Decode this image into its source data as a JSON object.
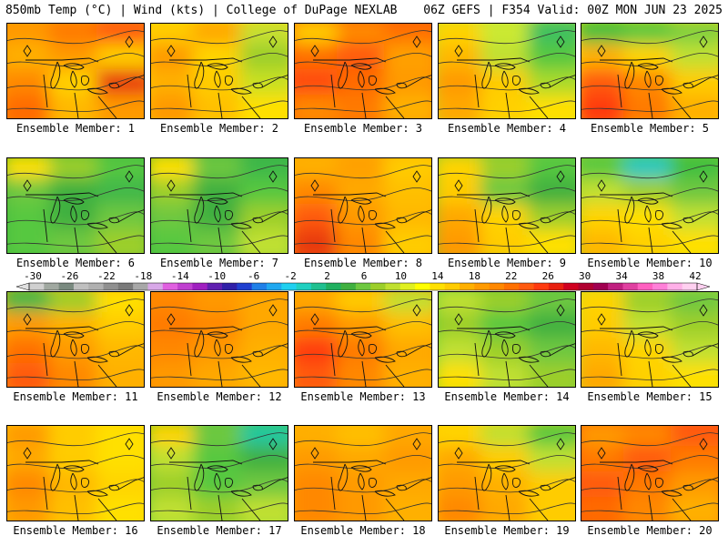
{
  "header": {
    "left": "850mb Temp (°C) | Wind (kts) | College of DuPage NEXLAB",
    "right": "06Z GEFS | F354 Valid: 00Z MON JUN 23 2025"
  },
  "panels": [
    {
      "label": "Ensemble Member: 1",
      "colors": [
        "#ff9900",
        "#ff7a00",
        "#ff5a10",
        "#ffb000",
        "#ff9a00",
        "#ffcc00",
        "#ff8800",
        "#ffd000",
        "#e83a10",
        "#ff6a00",
        "#ffb800",
        "#ff9a00"
      ]
    },
    {
      "label": "Ensemble Member: 2",
      "colors": [
        "#ffcc00",
        "#ffa800",
        "#c7e030",
        "#ff9900",
        "#ffd400",
        "#9ccf2a",
        "#ffb000",
        "#ffcc00",
        "#c8e020",
        "#ff9900",
        "#ffc000",
        "#ffe000"
      ]
    },
    {
      "label": "Ensemble Member: 3",
      "colors": [
        "#ffcc00",
        "#ff8a00",
        "#ff7000",
        "#ff7000",
        "#ff5a10",
        "#ffa000",
        "#ff4a10",
        "#ff6a00",
        "#ff9a00",
        "#ff8800",
        "#ff7a00",
        "#ffb000"
      ]
    },
    {
      "label": "Ensemble Member: 4",
      "colors": [
        "#ffd400",
        "#ccea30",
        "#3cc060",
        "#ffb800",
        "#c0e030",
        "#56c840",
        "#ff9a00",
        "#ffcc00",
        "#a8da2a",
        "#ffa800",
        "#ffd000",
        "#ffe000"
      ]
    },
    {
      "label": "Ensemble Member: 5",
      "colors": [
        "#3cbf40",
        "#56c840",
        "#80d040",
        "#ffb000",
        "#ffd400",
        "#c0e030",
        "#ff5a10",
        "#ff8800",
        "#ffcc00",
        "#ff3a10",
        "#ff7a00",
        "#ffb000"
      ]
    },
    {
      "label": "Ensemble Member: 6",
      "colors": [
        "#ffe000",
        "#9ccf2a",
        "#56c840",
        "#6ec840",
        "#3cb040",
        "#40b848",
        "#56c840",
        "#40b040",
        "#6ec840",
        "#56c840",
        "#6ec840",
        "#9ccf2a"
      ]
    },
    {
      "label": "Ensemble Member: 7",
      "colors": [
        "#ffe000",
        "#6ec840",
        "#3cb848",
        "#9ccf2a",
        "#40b040",
        "#56c840",
        "#6ec840",
        "#40b040",
        "#9ccf2a",
        "#56c840",
        "#6ec840",
        "#c0e030"
      ]
    },
    {
      "label": "Ensemble Member: 8",
      "colors": [
        "#ffb000",
        "#ffa000",
        "#ffcc00",
        "#ff8800",
        "#ffa800",
        "#ffc000",
        "#ff5a10",
        "#ff9a00",
        "#ffb800",
        "#e83a10",
        "#ff8800",
        "#ffcc00"
      ]
    },
    {
      "label": "Ensemble Member: 9",
      "colors": [
        "#ffd400",
        "#9ccf2a",
        "#56c840",
        "#ffcc00",
        "#6ec840",
        "#40b040",
        "#ffa800",
        "#ffd400",
        "#9ccf2a",
        "#ff9a00",
        "#ffcc00",
        "#ffe000"
      ]
    },
    {
      "label": "Ensemble Member: 10",
      "colors": [
        "#56c840",
        "#20c8c0",
        "#3cbf40",
        "#c0e030",
        "#9ccf2a",
        "#6ec840",
        "#ffd400",
        "#ffe000",
        "#c0e030",
        "#ffb800",
        "#ffd000",
        "#ffe000"
      ]
    },
    {
      "label": "Ensemble Member: 11",
      "colors": [
        "#3cb848",
        "#9ccf2a",
        "#ffe000",
        "#ff9a00",
        "#ffb000",
        "#ffcc00",
        "#ff7000",
        "#ff9a00",
        "#ffb800",
        "#ff5a10",
        "#ff8800",
        "#ffb000"
      ]
    },
    {
      "label": "Ensemble Member: 12",
      "colors": [
        "#ff8800",
        "#ff9a00",
        "#ffa800",
        "#ff7a00",
        "#ff8800",
        "#ffa800",
        "#ff8800",
        "#ff9900",
        "#ffb000",
        "#ff9a00",
        "#ffa800",
        "#ffb800"
      ]
    },
    {
      "label": "Ensemble Member: 13",
      "colors": [
        "#ffa800",
        "#ffcc00",
        "#c0e030",
        "#ff7a00",
        "#ff9a00",
        "#ffc000",
        "#ff3a10",
        "#ff7a00",
        "#ffa800",
        "#ff5a10",
        "#ff8800",
        "#ffb000"
      ]
    },
    {
      "label": "Ensemble Member: 14",
      "colors": [
        "#c0e030",
        "#9ccf2a",
        "#6ec840",
        "#9ccf2a",
        "#56c840",
        "#40b040",
        "#c0e030",
        "#9ccf2a",
        "#6ec840",
        "#ffe000",
        "#c0e030",
        "#9ccf2a"
      ]
    },
    {
      "label": "Ensemble Member: 15",
      "colors": [
        "#ffd400",
        "#9ccf2a",
        "#6ec840",
        "#ffcc00",
        "#c0e030",
        "#9ccf2a",
        "#ffb800",
        "#ffd400",
        "#c0e030",
        "#ffa800",
        "#ffd000",
        "#ffe000"
      ]
    },
    {
      "label": "Ensemble Member: 16",
      "colors": [
        "#ff9a00",
        "#ffcc00",
        "#ffe000",
        "#ffa800",
        "#ffcc00",
        "#ffe000",
        "#ff8800",
        "#ffb800",
        "#ffd400",
        "#ff9a00",
        "#ffc000",
        "#ffe000"
      ]
    },
    {
      "label": "Ensemble Member: 17",
      "colors": [
        "#ffd400",
        "#6ec840",
        "#20c8a0",
        "#c0e030",
        "#56c840",
        "#40b040",
        "#9ccf2a",
        "#56c840",
        "#6ec840",
        "#c0e030",
        "#9ccf2a",
        "#c0e030"
      ]
    },
    {
      "label": "Ensemble Member: 18",
      "colors": [
        "#ffb000",
        "#ffc000",
        "#ffa800",
        "#ff9a00",
        "#ffa800",
        "#ff9a00",
        "#ff8800",
        "#ff9a00",
        "#ffa800",
        "#ff8800",
        "#ff9900",
        "#ffb000"
      ]
    },
    {
      "label": "Ensemble Member: 19",
      "colors": [
        "#ffd400",
        "#c0e030",
        "#56c840",
        "#ffa800",
        "#ffcc00",
        "#c0e030",
        "#ff9a00",
        "#ffb000",
        "#ffcc00",
        "#ff8800",
        "#ffa800",
        "#ffcc00"
      ]
    },
    {
      "label": "Ensemble Member: 20",
      "colors": [
        "#ff9a00",
        "#ff8800",
        "#ff5a10",
        "#ff7a00",
        "#ff5a10",
        "#ff7a00",
        "#ff5a10",
        "#ff7a00",
        "#ff9a00",
        "#ff6a00",
        "#ff8800",
        "#ffb000"
      ]
    }
  ],
  "colorbar": {
    "labels": [
      "-30",
      "-26",
      "-22",
      "-18",
      "-14",
      "-10",
      "-6",
      "-2",
      "2",
      "6",
      "10",
      "14",
      "18",
      "22",
      "26",
      "30",
      "34",
      "38",
      "42"
    ],
    "colors": [
      "#d0d0d0",
      "#a0a8a0",
      "#7a8a80",
      "#c0c0c0",
      "#b0b0b0",
      "#909090",
      "#7a7a7a",
      "#a8a8a8",
      "#d8a8e8",
      "#e060e0",
      "#c040d0",
      "#a020c0",
      "#6020b0",
      "#3020a8",
      "#2040d0",
      "#2080e8",
      "#20a8f0",
      "#20d0f0",
      "#20d0c0",
      "#20c090",
      "#20b060",
      "#40b040",
      "#6ec840",
      "#9ccf2a",
      "#c0e030",
      "#e0f020",
      "#ffff00",
      "#ffe000",
      "#ffcc00",
      "#ffb000",
      "#ff9a00",
      "#ff8800",
      "#ff7000",
      "#ff5a10",
      "#ff3a10",
      "#e82010",
      "#d00020",
      "#b00030",
      "#a00050",
      "#c02080",
      "#e040a0",
      "#ff60c0",
      "#ff80d8",
      "#ffb0e8",
      "#ffd0f0"
    ]
  }
}
